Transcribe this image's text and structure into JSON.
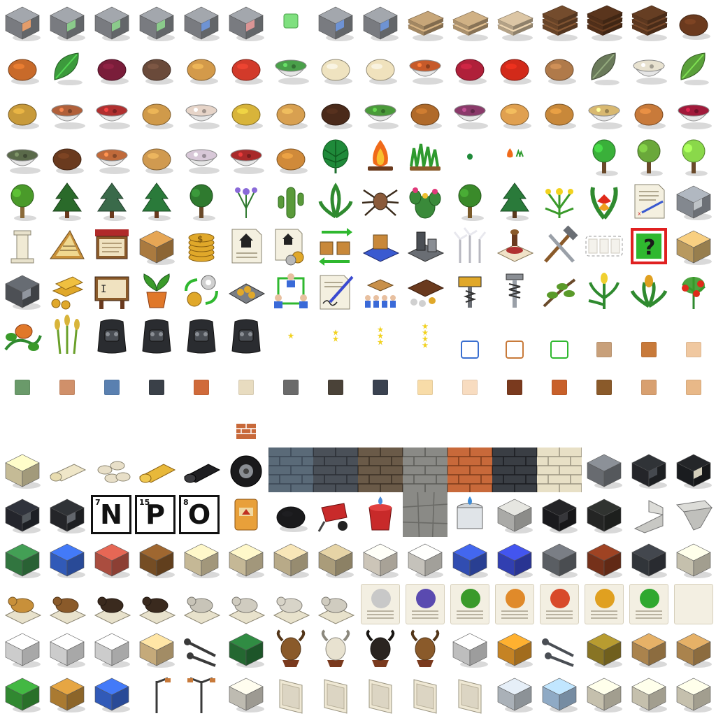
{
  "sheet": {
    "icons": {
      "cube": "cube-icon",
      "wood": "lumber-icon",
      "food": "food-icon",
      "tree": "tree-icon",
      "building": "building-icon",
      "tile": "material-tile-icon",
      "wall": "brick-wall-icon",
      "furniture": "furniture-icon",
      "animal": "animal-statue-icon",
      "card": "info-card-icon"
    },
    "element_letters": [
      {
        "number": "7",
        "symbol": "N"
      },
      {
        "number": "15",
        "symbol": "P"
      },
      {
        "number": "8",
        "symbol": "O"
      }
    ],
    "colors": {
      "cube_gray": "#8e9196",
      "wood_light": "#d8b483",
      "wood_dark": "#6b3f22",
      "leaf_green": "#2f8f2f",
      "brick_orange": "#c8693a",
      "slate_blue": "#5a6a78",
      "stone_gray": "#8a8a86",
      "cream_brick": "#e8e0c6",
      "gold": "#e0a82a",
      "star_yellow": "#f2d21e",
      "question_red": "#e02020",
      "question_green": "#2fb82f"
    }
  }
}
